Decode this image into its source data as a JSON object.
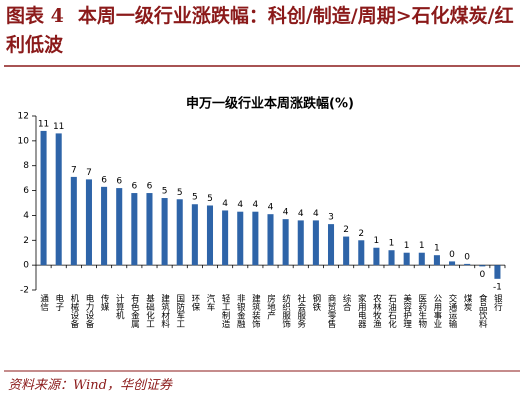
{
  "header": {
    "label": "图表 4",
    "title": "本周一级行业涨跌幅：科创/制造/周期>石化煤炭/红利低波"
  },
  "footer": {
    "source": "资料来源：Wind，华创证券"
  },
  "chart_data": {
    "type": "bar",
    "title": "申万一级行业本周涨跌幅(%)",
    "categories": [
      "通信",
      "电子",
      "机械设备",
      "电力设备",
      "传媒",
      "计算机",
      "有色金属",
      "基础化工",
      "建筑材料",
      "国防军工",
      "环保",
      "汽车",
      "轻工制造",
      "非银金融",
      "建筑装饰",
      "房地产",
      "纺织服饰",
      "社会服务",
      "钢铁",
      "商贸零售",
      "综合",
      "家用电器",
      "农林牧渔",
      "石油石化",
      "美容护理",
      "医药生物",
      "公用事业",
      "交通运输",
      "煤炭",
      "食品饮料",
      "银行"
    ],
    "values": [
      10.8,
      10.6,
      7.1,
      6.9,
      6.3,
      6.2,
      5.8,
      5.8,
      5.4,
      5.3,
      4.9,
      4.8,
      4.4,
      4.3,
      4.3,
      4.1,
      3.7,
      3.6,
      3.6,
      3.3,
      2.3,
      2.0,
      1.4,
      1.2,
      1.0,
      1.0,
      0.8,
      0.3,
      0.1,
      -0.1,
      -1.1
    ],
    "value_labels": [
      "11",
      "11",
      "7",
      "7",
      "6",
      "6",
      "6",
      "6",
      "5",
      "5",
      "5",
      "5",
      "4",
      "4",
      "4",
      "4",
      "4",
      "4",
      "4",
      "3",
      "2",
      "2",
      "1",
      "1",
      "1",
      "1",
      "1",
      "0",
      "0",
      "0",
      "-1"
    ],
    "color": "#2e64a8",
    "ylim": [
      -2,
      12
    ],
    "yticks": [
      -2,
      0,
      2,
      4,
      6,
      8,
      10,
      12
    ]
  }
}
